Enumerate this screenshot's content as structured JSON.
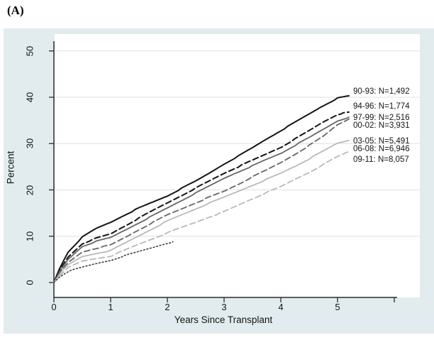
{
  "figure_label": "(A)",
  "chart_data": {
    "type": "line",
    "title": "",
    "xlabel": "Years Since Transplant",
    "ylabel": "Percent",
    "xlim": [
      0,
      6.45
    ],
    "ylim": [
      0,
      53
    ],
    "xticks": [
      0,
      1,
      2,
      3,
      4,
      5
    ],
    "unlabeled_xticks": [
      6
    ],
    "yticks": [
      0,
      10,
      20,
      30,
      40,
      50
    ],
    "grid": "horizontal-only",
    "legend_position": "right-inside-labels",
    "series": [
      {
        "name": "90-93: N=1,492",
        "style": "solid",
        "color": "#141414",
        "width": 2.0,
        "label_percent": 41.2,
        "x": [
          0,
          0.1,
          0.25,
          0.5,
          0.75,
          1,
          1.25,
          1.5,
          1.75,
          2,
          2.25,
          2.5,
          2.75,
          3,
          3.25,
          3.5,
          3.75,
          4,
          4.25,
          4.5,
          4.75,
          5,
          5.2
        ],
        "y": [
          0,
          3.0,
          6.6,
          9.8,
          11.7,
          13.0,
          14.6,
          16.1,
          17.4,
          18.7,
          20.3,
          21.9,
          23.7,
          25.6,
          27.3,
          29.1,
          31.0,
          32.8,
          34.6,
          36.4,
          38.2,
          39.8,
          40.3
        ]
      },
      {
        "name": "94-96: N=1,774",
        "style": "dashed",
        "color": "#141414",
        "width": 2.0,
        "label_percent": 38.0,
        "x": [
          0,
          0.1,
          0.25,
          0.5,
          0.75,
          1,
          1.25,
          1.5,
          1.75,
          2,
          2.25,
          2.5,
          2.75,
          3,
          3.25,
          3.5,
          3.75,
          4,
          4.25,
          4.5,
          4.75,
          5,
          5.2
        ],
        "y": [
          0,
          2.6,
          5.5,
          8.4,
          9.6,
          10.5,
          12.2,
          13.9,
          15.6,
          17.2,
          18.8,
          20.4,
          22.0,
          23.6,
          25.0,
          26.4,
          27.8,
          29.2,
          31.0,
          32.8,
          34.7,
          36.3,
          36.8
        ]
      },
      {
        "name": "97-99: N=2,516",
        "style": "solid",
        "color": "#666666",
        "width": 1.8,
        "label_percent": 35.6,
        "x": [
          0,
          0.1,
          0.25,
          0.5,
          0.75,
          1,
          1.25,
          1.5,
          1.75,
          2,
          2.25,
          2.5,
          2.75,
          3,
          3.25,
          3.5,
          3.75,
          4,
          4.25,
          4.5,
          4.75,
          5,
          5.2
        ],
        "y": [
          0,
          2.3,
          5.0,
          7.8,
          8.9,
          9.7,
          11.3,
          12.9,
          14.5,
          16.1,
          17.7,
          19.3,
          20.9,
          22.5,
          23.9,
          25.2,
          26.6,
          27.9,
          29.6,
          31.3,
          33.1,
          34.9,
          35.7
        ]
      },
      {
        "name": "00-02: N=3,931",
        "style": "dashed",
        "color": "#666666",
        "width": 1.8,
        "label_percent": 33.9,
        "x": [
          0,
          0.1,
          0.25,
          0.5,
          0.75,
          1,
          1.25,
          1.5,
          1.75,
          2,
          2.25,
          2.5,
          2.75,
          3,
          3.25,
          3.5,
          3.75,
          4,
          4.25,
          4.5,
          4.75,
          5,
          5.2
        ],
        "y": [
          0,
          2.0,
          4.3,
          6.6,
          7.4,
          8.1,
          9.7,
          11.4,
          13.0,
          14.6,
          15.9,
          17.2,
          18.5,
          19.7,
          21.2,
          22.8,
          24.3,
          25.9,
          27.7,
          29.6,
          31.6,
          34.1,
          35.3
        ]
      },
      {
        "name": "03-05: N=5,491",
        "style": "solid",
        "color": "#b9b9b9",
        "width": 1.8,
        "label_percent": 30.5,
        "x": [
          0,
          0.1,
          0.25,
          0.5,
          0.75,
          1,
          1.25,
          1.5,
          1.75,
          2,
          2.25,
          2.5,
          2.75,
          3,
          3.25,
          3.5,
          3.75,
          4,
          4.25,
          4.5,
          4.75,
          5,
          5.2
        ],
        "y": [
          0,
          1.8,
          3.8,
          5.6,
          6.3,
          6.9,
          8.5,
          10.1,
          11.7,
          13.3,
          14.6,
          15.9,
          17.2,
          18.4,
          19.7,
          21.0,
          22.3,
          23.6,
          25.1,
          26.7,
          28.4,
          30.1,
          30.7
        ]
      },
      {
        "name": "06-08: N=6,946",
        "style": "dashed",
        "color": "#b9b9b9",
        "width": 1.8,
        "label_percent": 28.8,
        "x": [
          0,
          0.1,
          0.25,
          0.5,
          0.75,
          1,
          1.25,
          1.5,
          1.75,
          2,
          2.25,
          2.5,
          2.75,
          3,
          3.25,
          3.5,
          3.75,
          4,
          4.25,
          4.5,
          4.75,
          5,
          5.2
        ],
        "y": [
          0,
          1.5,
          3.2,
          4.6,
          5.2,
          5.7,
          7.0,
          8.3,
          9.5,
          10.7,
          11.9,
          13.0,
          14.2,
          15.3,
          16.7,
          18.1,
          19.4,
          20.7,
          22.3,
          23.8,
          25.5,
          27.2,
          28.3
        ]
      },
      {
        "name": "09-11: N=8,057",
        "style": "dotted",
        "color": "#333333",
        "width": 1.5,
        "label_percent": 26.5,
        "x": [
          0,
          0.1,
          0.25,
          0.5,
          0.75,
          1,
          1.25,
          1.5,
          1.75,
          2,
          2.1
        ],
        "y": [
          0,
          1.2,
          2.4,
          3.3,
          4.1,
          4.8,
          5.8,
          6.7,
          7.6,
          8.5,
          8.8
        ]
      }
    ]
  },
  "colors": {
    "panel_background": "#e2ecee",
    "plot_background": "#ffffff",
    "gridline": "#dde9ea",
    "axis": "#2b2b2b",
    "text": "#141414"
  }
}
